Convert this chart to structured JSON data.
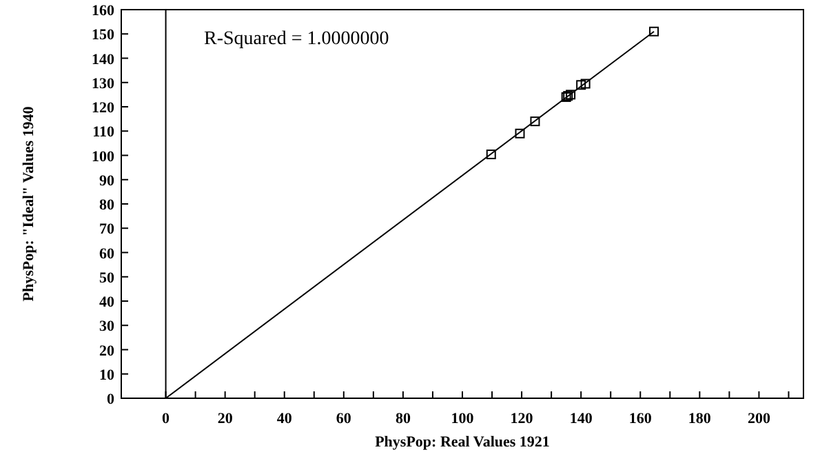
{
  "chart_data": {
    "type": "scatter",
    "xlabel": "PhysPop: Real Values 1921",
    "ylabel": "PhysPop: \"Ideal\" Values 1940",
    "annotations": [
      "R-Squared = 1.0000000"
    ],
    "series": [
      {
        "color": "#000000",
        "marker": "square",
        "x": [
          109.7,
          119.4,
          124.5,
          135,
          135.6,
          136.5,
          140,
          141.5,
          164.6
        ],
        "values": [
          100.4,
          109,
          114,
          124,
          124.5,
          125,
          129,
          129.5,
          151
        ]
      },
      {
        "type": "line",
        "color": "#000000",
        "marker": "none",
        "x": [
          0,
          164.6
        ],
        "values": [
          0,
          151
        ]
      }
    ],
    "ref_lines": [
      {
        "axis": "x",
        "value": 0,
        "color": "#000000"
      }
    ],
    "xlim": [
      -15,
      215
    ],
    "ylim": [
      0,
      160
    ],
    "xticks": [
      0,
      {
        "value": 10,
        "label": null
      },
      20,
      {
        "value": 30,
        "label": null
      },
      40,
      {
        "value": 50,
        "label": null
      },
      60,
      {
        "value": 70,
        "label": null
      },
      80,
      {
        "value": 90,
        "label": null
      },
      100,
      {
        "value": 110,
        "label": null
      },
      120,
      {
        "value": 130,
        "label": null
      },
      140,
      {
        "value": 150,
        "label": null
      },
      160,
      {
        "value": 170,
        "label": null
      },
      180,
      {
        "value": 190,
        "label": null
      },
      200,
      {
        "value": 210,
        "label": null
      }
    ],
    "yticks": [
      0,
      10,
      20,
      30,
      40,
      50,
      60,
      70,
      80,
      90,
      100,
      110,
      120,
      130,
      140,
      150,
      160
    ],
    "grid": false
  }
}
